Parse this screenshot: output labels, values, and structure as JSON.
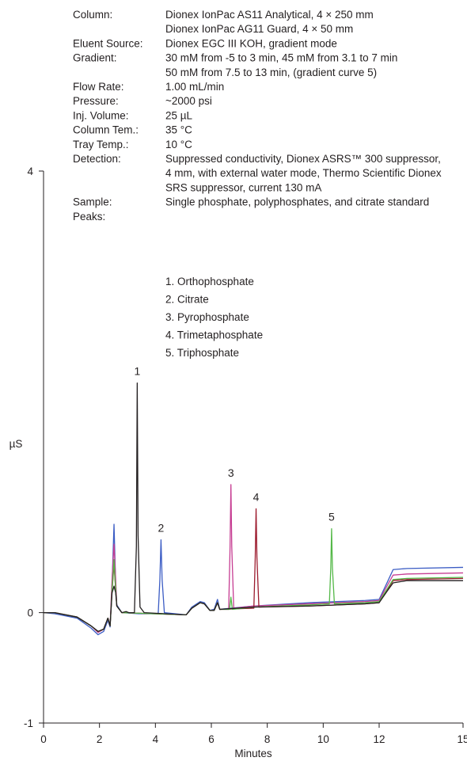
{
  "conditions": [
    {
      "label": "Column:",
      "lines": [
        "Dionex IonPac AS11 Analytical, 4 × 250 mm",
        "Dionex IonPac AG11 Guard, 4 × 50 mm"
      ]
    },
    {
      "label": "Eluent Source:",
      "lines": [
        "Dionex EGC III KOH, gradient mode"
      ]
    },
    {
      "label": "Gradient:",
      "lines": [
        "30 mM from -5 to 3 min, 45 mM from 3.1 to 7 min",
        "50 mM from 7.5 to 13 min, (gradient curve 5)"
      ]
    },
    {
      "label": "Flow Rate:",
      "lines": [
        "1.00 mL/min"
      ]
    },
    {
      "label": "Pressure:",
      "lines": [
        "~2000 psi"
      ]
    },
    {
      "label": "Inj. Volume:",
      "lines": [
        "25 µL"
      ]
    },
    {
      "label": "Column Tem.:",
      "lines": [
        "35 °C"
      ]
    },
    {
      "label": "Tray Temp.:",
      "lines": [
        "10 °C"
      ]
    },
    {
      "label": "Detection:",
      "lines": [
        "Suppressed conductivity, Dionex ASRS™ 300 suppressor,",
        "4 mm, with external water mode, Thermo Scientific Dionex",
        "SRS suppressor, current 130 mA"
      ]
    },
    {
      "label": "Sample:",
      "lines": [
        "Single  phosphate, polyphosphates, and citrate standard"
      ]
    },
    {
      "label": "Peaks:",
      "lines": [
        ""
      ]
    }
  ],
  "peak_list": [
    "1. Orthophosphate",
    "2. Citrate",
    "3. Pyrophosphate",
    "4. Trimetaphosphate",
    "5. Triphosphate"
  ],
  "chart_data": {
    "type": "line",
    "title": "",
    "xlabel": "Minutes",
    "ylabel": "µS",
    "xlim": [
      0,
      15
    ],
    "ylim": [
      -1,
      4
    ],
    "xticks": [
      0,
      2,
      4,
      6,
      8,
      10,
      12,
      15
    ],
    "xtick_labels": [
      "0",
      "2",
      "4",
      "6",
      "8",
      "10",
      "12",
      "15"
    ],
    "yticks": [
      -1,
      0,
      4
    ],
    "ytick_labels": [
      "-1",
      "0",
      "4"
    ],
    "grid": false,
    "peak_labels": [
      {
        "label": "1",
        "x": 3.35,
        "y": 2.08
      },
      {
        "label": "2",
        "x": 4.2,
        "y": 0.66
      },
      {
        "label": "3",
        "x": 6.7,
        "y": 1.16
      },
      {
        "label": "4",
        "x": 7.6,
        "y": 0.94
      },
      {
        "label": "5",
        "x": 10.3,
        "y": 0.76
      }
    ],
    "series": [
      {
        "color": "#231f20",
        "points": [
          [
            0,
            0
          ],
          [
            0.4,
            0.0
          ],
          [
            1.2,
            -0.04
          ],
          [
            1.7,
            -0.12
          ],
          [
            1.95,
            -0.17
          ],
          [
            2.15,
            -0.15
          ],
          [
            2.3,
            -0.05
          ],
          [
            2.38,
            -0.12
          ],
          [
            2.45,
            0.18
          ],
          [
            2.52,
            0.24
          ],
          [
            2.58,
            0.18
          ],
          [
            2.62,
            0.06
          ],
          [
            2.8,
            0.0
          ],
          [
            2.95,
            0.01
          ],
          [
            3.05,
            0.0
          ],
          [
            3.25,
            0.0
          ],
          [
            3.32,
            0.6
          ],
          [
            3.35,
            2.08
          ],
          [
            3.38,
            0.7
          ],
          [
            3.45,
            0.05
          ],
          [
            3.6,
            0.0
          ],
          [
            5.1,
            -0.02
          ],
          [
            5.3,
            0.04
          ],
          [
            5.6,
            0.09
          ],
          [
            5.75,
            0.08
          ],
          [
            5.95,
            0.02
          ],
          [
            6.1,
            0.02
          ],
          [
            6.22,
            0.09
          ],
          [
            6.3,
            0.03
          ],
          [
            7.5,
            0.05
          ],
          [
            9.5,
            0.06
          ],
          [
            11.5,
            0.08
          ],
          [
            12.0,
            0.09
          ],
          [
            12.3,
            0.2
          ],
          [
            12.5,
            0.27
          ],
          [
            13.0,
            0.29
          ],
          [
            15,
            0.29
          ]
        ]
      },
      {
        "color": "#3b5cc4",
        "points": [
          [
            0,
            0
          ],
          [
            0.4,
            -0.01
          ],
          [
            1.2,
            -0.05
          ],
          [
            1.7,
            -0.14
          ],
          [
            1.95,
            -0.2
          ],
          [
            2.15,
            -0.17
          ],
          [
            2.3,
            -0.07
          ],
          [
            2.38,
            -0.13
          ],
          [
            2.45,
            0.25
          ],
          [
            2.52,
            0.8
          ],
          [
            2.58,
            0.25
          ],
          [
            2.62,
            0.07
          ],
          [
            2.8,
            0.0
          ],
          [
            3.4,
            -0.01
          ],
          [
            4.1,
            -0.01
          ],
          [
            4.16,
            0.3
          ],
          [
            4.2,
            0.66
          ],
          [
            4.24,
            0.3
          ],
          [
            4.32,
            0.0
          ],
          [
            5.1,
            -0.02
          ],
          [
            5.3,
            0.05
          ],
          [
            5.6,
            0.1
          ],
          [
            5.75,
            0.09
          ],
          [
            5.95,
            0.02
          ],
          [
            6.1,
            0.03
          ],
          [
            6.22,
            0.12
          ],
          [
            6.3,
            0.03
          ],
          [
            7.5,
            0.06
          ],
          [
            9.5,
            0.09
          ],
          [
            11.5,
            0.11
          ],
          [
            12.0,
            0.12
          ],
          [
            12.3,
            0.28
          ],
          [
            12.5,
            0.39
          ],
          [
            13.0,
            0.4
          ],
          [
            15,
            0.41
          ]
        ]
      },
      {
        "color": "#c63d92",
        "points": [
          [
            0,
            0
          ],
          [
            0.4,
            0.0
          ],
          [
            1.2,
            -0.04
          ],
          [
            1.7,
            -0.12
          ],
          [
            1.95,
            -0.18
          ],
          [
            2.15,
            -0.15
          ],
          [
            2.3,
            -0.05
          ],
          [
            2.38,
            -0.12
          ],
          [
            2.45,
            0.3
          ],
          [
            2.52,
            0.62
          ],
          [
            2.58,
            0.3
          ],
          [
            2.62,
            0.06
          ],
          [
            2.8,
            0.0
          ],
          [
            5.1,
            -0.02
          ],
          [
            5.3,
            0.04
          ],
          [
            5.6,
            0.09
          ],
          [
            5.75,
            0.08
          ],
          [
            5.95,
            0.02
          ],
          [
            6.1,
            0.02
          ],
          [
            6.22,
            0.09
          ],
          [
            6.3,
            0.03
          ],
          [
            6.62,
            0.03
          ],
          [
            6.67,
            0.6
          ],
          [
            6.7,
            1.16
          ],
          [
            6.73,
            0.6
          ],
          [
            6.8,
            0.04
          ],
          [
            7.5,
            0.06
          ],
          [
            9.5,
            0.08
          ],
          [
            11.5,
            0.1
          ],
          [
            12.0,
            0.11
          ],
          [
            12.3,
            0.25
          ],
          [
            12.5,
            0.34
          ],
          [
            13.0,
            0.35
          ],
          [
            15,
            0.36
          ]
        ]
      },
      {
        "color": "#9c1b2e",
        "points": [
          [
            0,
            0
          ],
          [
            0.4,
            0.0
          ],
          [
            1.2,
            -0.04
          ],
          [
            1.7,
            -0.12
          ],
          [
            1.95,
            -0.17
          ],
          [
            2.15,
            -0.15
          ],
          [
            2.3,
            -0.05
          ],
          [
            2.38,
            -0.12
          ],
          [
            2.45,
            0.2
          ],
          [
            2.52,
            0.44
          ],
          [
            2.58,
            0.2
          ],
          [
            2.62,
            0.06
          ],
          [
            2.8,
            0.0
          ],
          [
            5.1,
            -0.02
          ],
          [
            5.3,
            0.04
          ],
          [
            5.6,
            0.09
          ],
          [
            5.75,
            0.08
          ],
          [
            5.95,
            0.02
          ],
          [
            6.1,
            0.02
          ],
          [
            6.22,
            0.09
          ],
          [
            6.3,
            0.03
          ],
          [
            7.52,
            0.04
          ],
          [
            7.57,
            0.5
          ],
          [
            7.6,
            0.94
          ],
          [
            7.63,
            0.5
          ],
          [
            7.7,
            0.05
          ],
          [
            9.5,
            0.06
          ],
          [
            11.5,
            0.08
          ],
          [
            12.0,
            0.09
          ],
          [
            12.3,
            0.21
          ],
          [
            12.5,
            0.29
          ],
          [
            13.0,
            0.3
          ],
          [
            15,
            0.31
          ]
        ]
      },
      {
        "color": "#54b848",
        "points": [
          [
            0,
            0
          ],
          [
            0.4,
            0.0
          ],
          [
            1.2,
            -0.04
          ],
          [
            1.7,
            -0.12
          ],
          [
            1.95,
            -0.17
          ],
          [
            2.15,
            -0.15
          ],
          [
            2.3,
            -0.05
          ],
          [
            2.38,
            -0.12
          ],
          [
            2.45,
            0.2
          ],
          [
            2.52,
            0.48
          ],
          [
            2.58,
            0.2
          ],
          [
            2.62,
            0.06
          ],
          [
            2.8,
            0.0
          ],
          [
            5.1,
            -0.02
          ],
          [
            5.3,
            0.04
          ],
          [
            5.6,
            0.09
          ],
          [
            5.75,
            0.08
          ],
          [
            5.95,
            0.02
          ],
          [
            6.1,
            0.02
          ],
          [
            6.22,
            0.09
          ],
          [
            6.3,
            0.03
          ],
          [
            6.65,
            0.03
          ],
          [
            6.7,
            0.14
          ],
          [
            6.75,
            0.03
          ],
          [
            7.5,
            0.05
          ],
          [
            9.5,
            0.07
          ],
          [
            10.22,
            0.08
          ],
          [
            10.27,
            0.4
          ],
          [
            10.3,
            0.76
          ],
          [
            10.33,
            0.4
          ],
          [
            10.4,
            0.08
          ],
          [
            11.5,
            0.09
          ],
          [
            12.0,
            0.1
          ],
          [
            12.3,
            0.22
          ],
          [
            12.5,
            0.3
          ],
          [
            13.0,
            0.31
          ],
          [
            15,
            0.32
          ]
        ]
      }
    ]
  }
}
